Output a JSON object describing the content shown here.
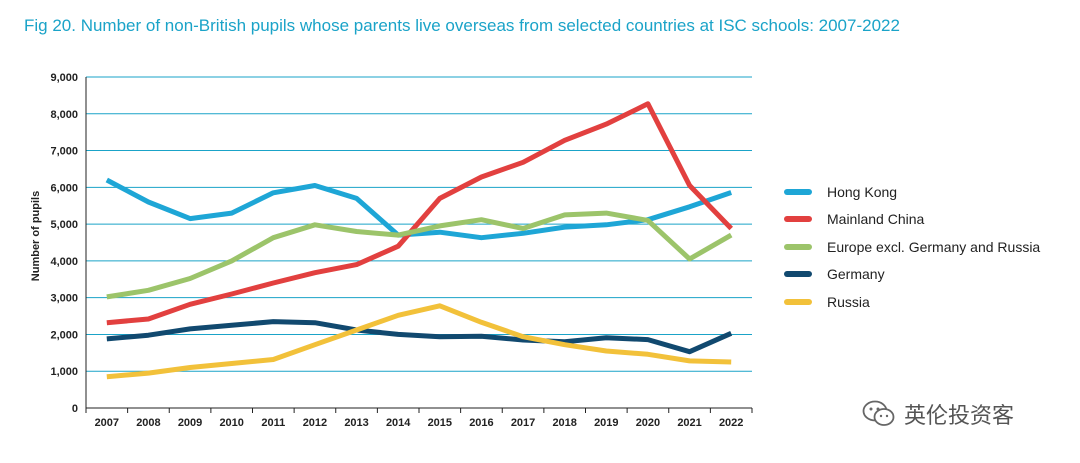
{
  "title": "Fig 20. Number of non-British pupils whose parents live overseas from selected countries at ISC schools: 2007-2022",
  "watermark": "英伦投资客",
  "chart_data": {
    "type": "line",
    "title": "Fig 20. Number of non-British pupils whose parents live overseas from selected countries at ISC schools: 2007-2022",
    "xlabel": "",
    "ylabel": "Number of pupils",
    "x": [
      "2007",
      "2008",
      "2009",
      "2010",
      "2011",
      "2012",
      "2013",
      "2014",
      "2015",
      "2016",
      "2017",
      "2018",
      "2019",
      "2020",
      "2021",
      "2022"
    ],
    "ylim": [
      0,
      9000
    ],
    "yticks": [
      0,
      1000,
      2000,
      3000,
      4000,
      5000,
      6000,
      7000,
      8000,
      9000
    ],
    "ytick_labels": [
      "0",
      "1,000",
      "2,000",
      "3,000",
      "4,000",
      "5,000",
      "6,000",
      "7,000",
      "8,000",
      "9,000"
    ],
    "grid": "horizontal",
    "legend_position": "right",
    "series": [
      {
        "name": "Hong Kong",
        "color": "#1ea6d6",
        "values": [
          6200,
          5600,
          5150,
          5300,
          5850,
          6050,
          5700,
          4700,
          4780,
          4630,
          4750,
          4920,
          4980,
          5120,
          5470,
          5860
        ]
      },
      {
        "name": "Mainland China",
        "color": "#e2403f",
        "values": [
          2320,
          2420,
          2820,
          3100,
          3400,
          3680,
          3900,
          4400,
          5700,
          6280,
          6680,
          7280,
          7720,
          8270,
          6050,
          4880
        ]
      },
      {
        "name": "Europe excl. Germany and Russia",
        "color": "#9cc46a",
        "values": [
          3020,
          3200,
          3520,
          4000,
          4630,
          4980,
          4800,
          4700,
          4950,
          5120,
          4880,
          5250,
          5300,
          5100,
          4050,
          4700
        ]
      },
      {
        "name": "Germany",
        "color": "#11496f",
        "values": [
          1880,
          1980,
          2150,
          2250,
          2350,
          2320,
          2120,
          2000,
          1940,
          1950,
          1850,
          1800,
          1910,
          1860,
          1530,
          2030
        ]
      },
      {
        "name": "Russia",
        "color": "#f2c13a",
        "values": [
          850,
          950,
          1100,
          1210,
          1320,
          1720,
          2120,
          2520,
          2780,
          2330,
          1940,
          1720,
          1550,
          1460,
          1280,
          1250
        ]
      }
    ]
  }
}
